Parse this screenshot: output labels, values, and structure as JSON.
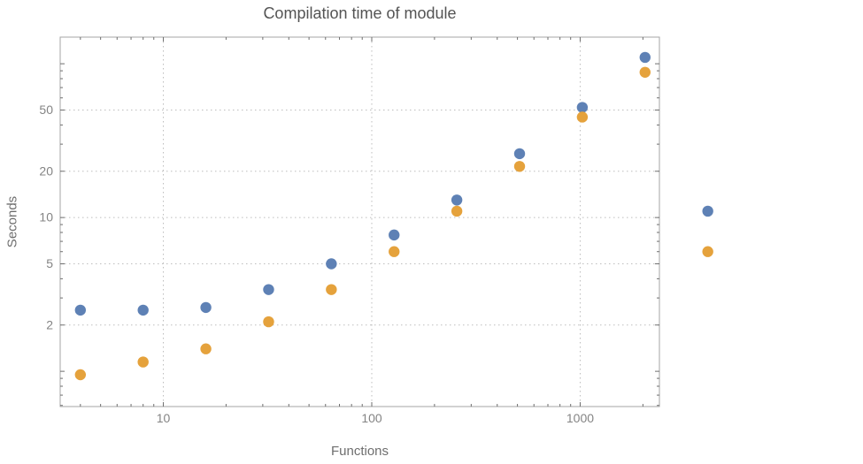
{
  "chart_data": {
    "type": "scatter",
    "title": "Compilation time of module",
    "xlabel": "Functions",
    "ylabel": "Seconds",
    "x_scale": "log",
    "y_scale": "log",
    "xlim": [
      3.2,
      2400
    ],
    "ylim": [
      0.59,
      149
    ],
    "x_ticks": [
      10,
      100,
      1000
    ],
    "y_ticks": [
      2,
      5,
      10,
      20,
      50
    ],
    "grid": true,
    "legend": false,
    "marker_radius": 6.2,
    "frame_color": "#a6a6a6",
    "grid_color": "#bdbdbd",
    "tick_color": "#6e6e6e",
    "tick_label_color": "#848484",
    "series": [
      {
        "name": "blue",
        "color": "#5e81b5",
        "marker": "circle",
        "points": [
          [
            4,
            2.5
          ],
          [
            8,
            2.5
          ],
          [
            16,
            2.6
          ],
          [
            32,
            3.4
          ],
          [
            64,
            5.0
          ],
          [
            128,
            7.7
          ],
          [
            256,
            13
          ],
          [
            512,
            26
          ],
          [
            1024,
            52
          ],
          [
            2048,
            110
          ],
          [
            4096,
            11
          ]
        ]
      },
      {
        "name": "orange",
        "color": "#e5a23c",
        "marker": "circle",
        "points": [
          [
            4,
            0.95
          ],
          [
            8,
            1.15
          ],
          [
            16,
            1.4
          ],
          [
            32,
            2.1
          ],
          [
            64,
            3.4
          ],
          [
            128,
            6
          ],
          [
            256,
            11
          ],
          [
            512,
            21.5
          ],
          [
            1024,
            45
          ],
          [
            2048,
            88
          ],
          [
            4096,
            6
          ]
        ]
      }
    ]
  }
}
